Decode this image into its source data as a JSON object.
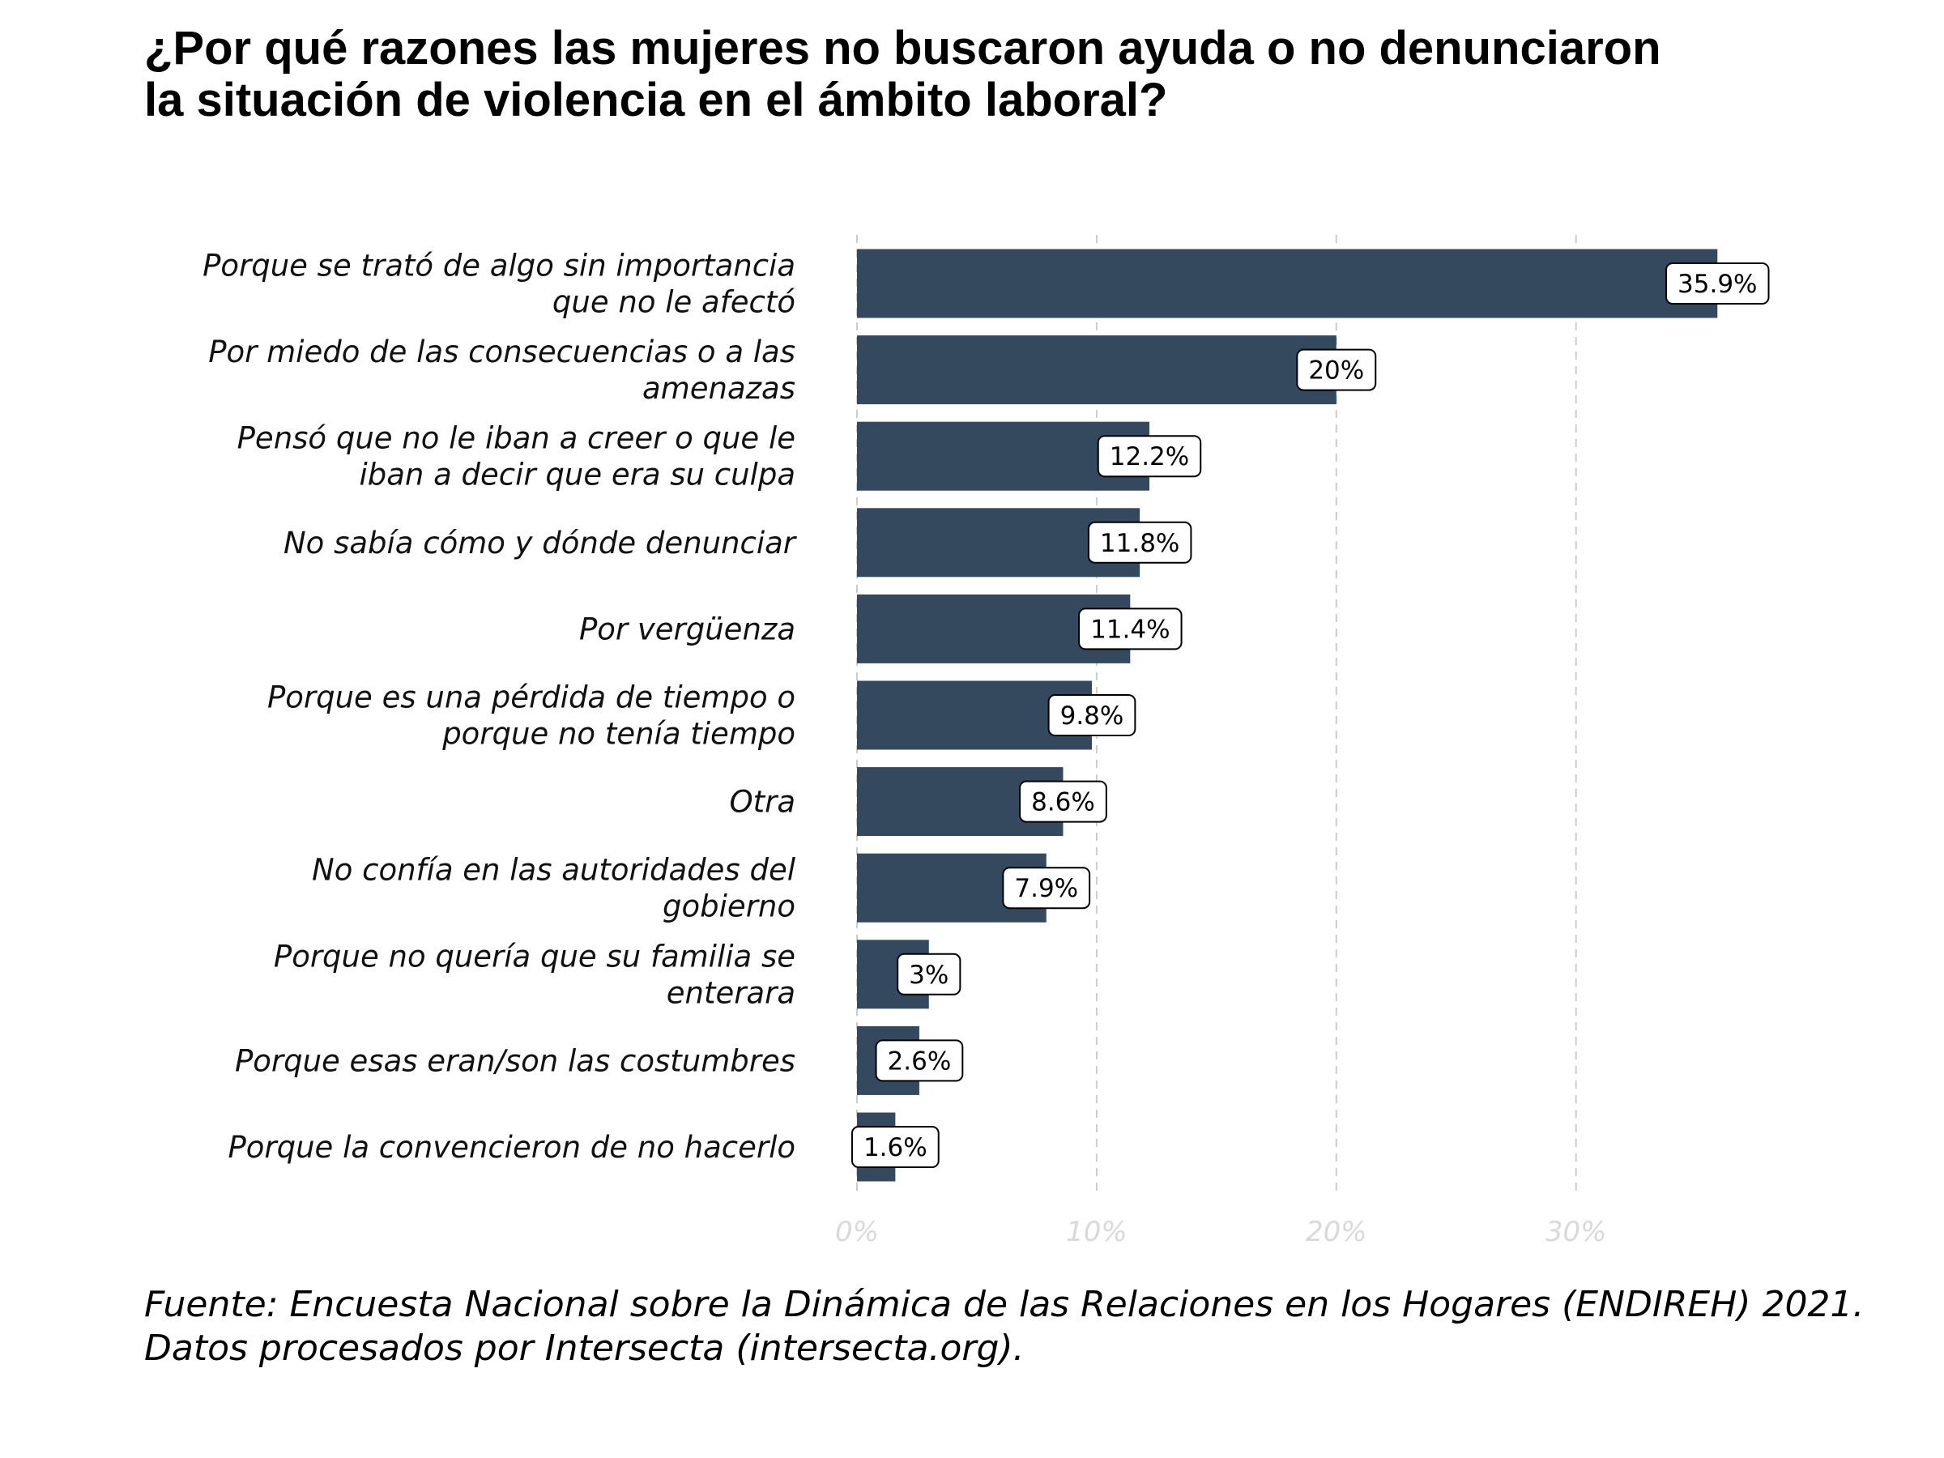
{
  "title_lines": [
    "¿Por qué razones las mujeres no buscaron ayuda o no denunciaron",
    "la situación de violencia en el ámbito laboral?"
  ],
  "caption_lines": [
    "Fuente: Encuesta Nacional sobre la Dinámica de las Relaciones en los Hogares (ENDIREH) 2021.",
    "Datos procesados por Intersecta (intersecta.org)."
  ],
  "colors": {
    "bar": "#34495e",
    "grid": "#cccccc",
    "tick_text": "#d9d9d9",
    "label_box_border": "#000000",
    "label_box_fill": "#ffffff"
  },
  "chart_data": {
    "type": "bar",
    "orientation": "horizontal",
    "categories": [
      [
        "Porque se trató de algo sin importancia",
        "que no le afectó"
      ],
      [
        "Por miedo de las consecuencias o a las",
        "amenazas"
      ],
      [
        "Pensó que no le iban a creer o que le",
        "iban a decir que era su culpa"
      ],
      [
        "No sabía cómo y dónde denunciar"
      ],
      [
        "Por vergüenza"
      ],
      [
        "Porque es una pérdida de tiempo o",
        "porque no tenía tiempo"
      ],
      [
        "Otra"
      ],
      [
        "No confía en las autoridades del",
        "gobierno"
      ],
      [
        "Porque no quería que su familia se",
        "enterara"
      ],
      [
        "Porque esas eran/son las costumbres"
      ],
      [
        "Porque la convencieron de no hacerlo"
      ]
    ],
    "values": [
      35.9,
      20,
      12.2,
      11.8,
      11.4,
      9.8,
      8.6,
      7.9,
      3,
      2.6,
      1.6
    ],
    "value_labels": [
      "35.9%",
      "20%",
      "12.2%",
      "11.8%",
      "11.4%",
      "9.8%",
      "8.6%",
      "7.9%",
      "3%",
      "2.6%",
      "1.6%"
    ],
    "xlim": [
      0,
      39
    ],
    "x_ticks": [
      0,
      10,
      20,
      30
    ],
    "x_tick_labels": [
      "0%",
      "10%",
      "20%",
      "30%"
    ],
    "grid": "vertical dashed"
  }
}
